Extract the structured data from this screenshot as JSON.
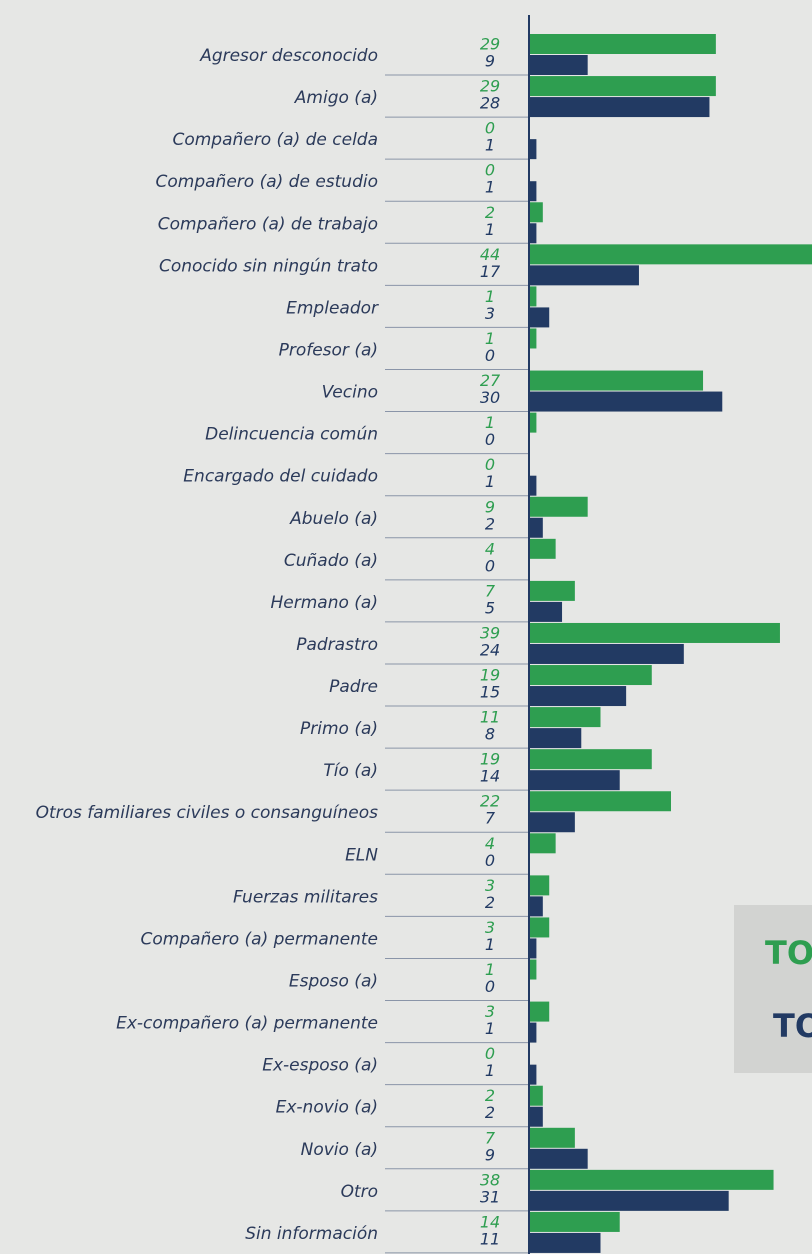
{
  "chart_data": {
    "type": "bar",
    "orientation": "horizontal",
    "categories": [
      "Agresor desconocido",
      "Amigo (a)",
      "Compañero (a) de celda",
      "Compañero (a) de estudio",
      "Compañero (a) de trabajo",
      "Conocido sin ningún trato",
      "Empleador",
      "Profesor (a)",
      "Vecino",
      "Delincuencia común",
      "Encargado del cuidado",
      "Abuelo (a)",
      "Cuñado (a)",
      "Hermano (a)",
      "Padrastro",
      "Padre",
      "Primo (a)",
      "Tío (a)",
      "Otros familiares civiles o consanguíneos",
      "ELN",
      "Fuerzas militares",
      "Compañero (a) permanente",
      "Esposo (a)",
      "Ex-compañero (a) permanente",
      "Ex-esposo (a)",
      "Ex-novio (a)",
      "Novio (a)",
      "Otro",
      "Sin información"
    ],
    "series": [
      {
        "name": "TO",
        "color": "#2e9e50",
        "values": [
          29,
          29,
          0,
          0,
          2,
          44,
          1,
          1,
          27,
          1,
          0,
          9,
          4,
          7,
          39,
          19,
          11,
          19,
          22,
          4,
          3,
          3,
          1,
          3,
          0,
          2,
          7,
          38,
          14
        ]
      },
      {
        "name": "TO",
        "color": "#223a63",
        "values": [
          9,
          28,
          1,
          1,
          1,
          17,
          3,
          0,
          30,
          0,
          1,
          2,
          0,
          5,
          24,
          15,
          8,
          14,
          7,
          0,
          2,
          1,
          0,
          1,
          1,
          2,
          9,
          31,
          11
        ]
      }
    ]
  }
}
